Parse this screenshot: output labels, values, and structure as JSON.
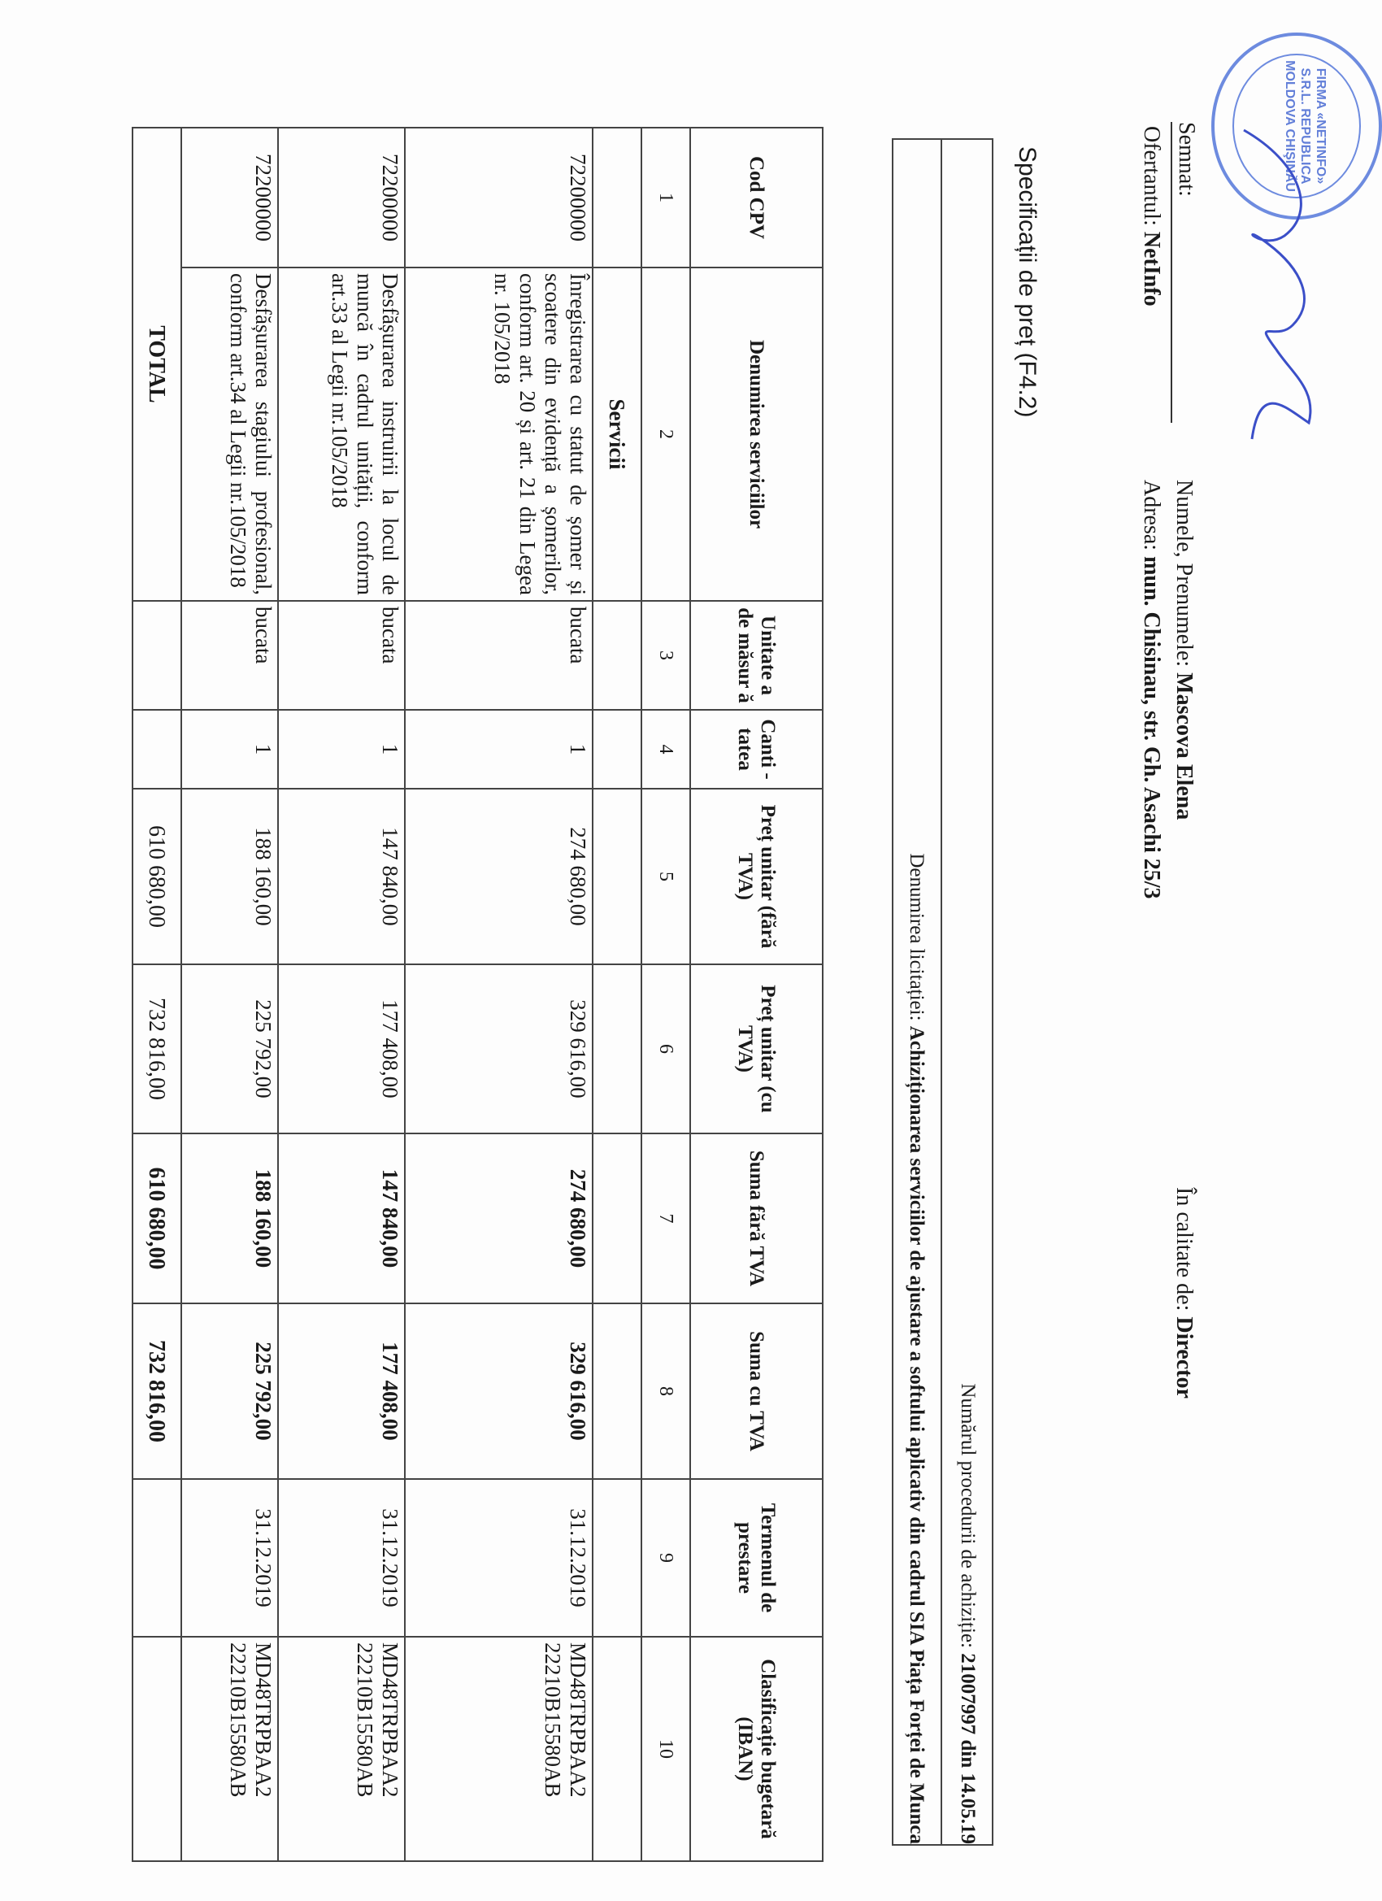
{
  "signature": {
    "signed_label": "Semnat:",
    "stamp_text": "FIRMA «NETINFO» S.R.L. REPUBLICA MOLDOVA CHIŞINĂU",
    "name_label": "Numele, Prenumele:",
    "name_value": "Mascova Elena",
    "role_label": "În calitate de:",
    "role_value": "Director",
    "bidder_label": "Ofertantul:",
    "bidder_value": "NetInfo",
    "address_label": "Adresa:",
    "address_value": "mun. Chisinau, str. Gh. Asachi 25/3"
  },
  "title": "Specificații de preț (F4.2)",
  "procedure": {
    "number_label": "Numărul procedurii de achiziție:",
    "number_value": "21007997 din 14.05.19",
    "tender_label": "Denumirea licitației:",
    "tender_value": "Achiziționarea serviciilor de ajustare a softului aplicativ din cadrul SIA Piața Forței de Munca"
  },
  "table": {
    "headers": [
      "Cod CPV",
      "Denumirea serviciilor",
      "Unitate a de măsur ă",
      "Canti -tatea",
      "Preț unitar (fără TVA)",
      "Preț unitar (cu TVA)",
      "Suma fără TVA",
      "Suma cu TVA",
      "Termenul de prestare",
      "Clasificație bugetară (IBAN)"
    ],
    "column_numbers": [
      "1",
      "2",
      "3",
      "4",
      "5",
      "6",
      "7",
      "8",
      "9",
      "10"
    ],
    "section": "Servicii",
    "rows": [
      {
        "cpv": "72200000",
        "name": "Înregistrarea cu statut de șomer și scoatere din evidență a șomerilor, conform art. 20 și art. 21 din Legea nr. 105/2018",
        "unit": "bucata",
        "qty": "1",
        "price": "274 680,00",
        "price_vat": "329 616,00",
        "sum": "274 680,00",
        "sum_vat": "329 616,00",
        "term": "31.12.2019",
        "iban": "MD48TRPBAA2 22210B15580AB"
      },
      {
        "cpv": "72200000",
        "name": "Desfășurarea instruirii la locul de muncă în cadrul unității, conform art.33 al Legii nr.105/2018",
        "unit": "bucata",
        "qty": "1",
        "price": "147 840,00",
        "price_vat": "177 408,00",
        "sum": "147 840,00",
        "sum_vat": "177 408,00",
        "term": "31.12.2019",
        "iban": "MD48TRPBAA2 22210B15580AB"
      },
      {
        "cpv": "72200000",
        "name": "Desfășurarea stagiului profesional, conform art.34 al Legii nr.105/2018",
        "unit": "bucata",
        "qty": "1",
        "price": "188 160,00",
        "price_vat": "225 792,00",
        "sum": "188 160,00",
        "sum_vat": "225 792,00",
        "term": "31.12.2019",
        "iban": "MD48TRPBAA2 22210B15580AB"
      }
    ],
    "total": {
      "label": "TOTAL",
      "price": "610 680,00",
      "price_vat": "732 816,00",
      "sum": "610 680,00",
      "sum_vat": "732 816,00"
    }
  },
  "colors": {
    "stamp": "#4a6fd8",
    "signature_ink": "#3b4fc8"
  }
}
